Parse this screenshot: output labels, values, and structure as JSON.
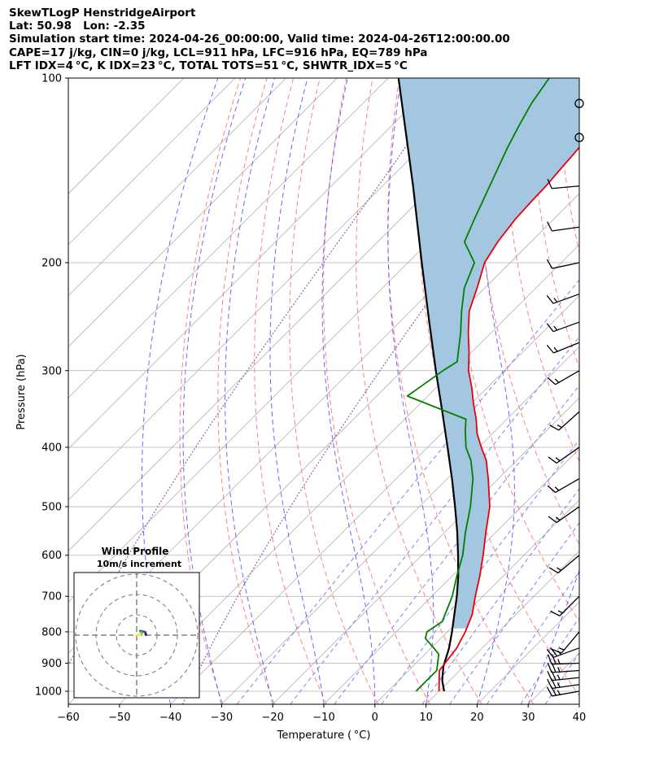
{
  "header": {
    "lines": [
      "SkewTLogP HenstridgeAirport",
      "Lat: 50.98   Lon: -2.35",
      "Simulation start time: 2024-04-26_00:00:00, Valid time: 2024-04-26T12:00:00.00",
      "CAPE=17 j/kg, CIN=0 j/kg, LCL=911 hPa, LFC=916 hPa, EQ=789 hPa",
      "LFT IDX=4 °C, K IDX=23 °C, TOTAL TOTS=51 °C, SHWTR_IDX=5 °C"
    ]
  },
  "chart_data": {
    "type": "line",
    "subtype": "skew-t log-p",
    "xlabel": "Temperature ( °C)",
    "ylabel": "Pressure (hPa)",
    "xlim": [
      -60,
      40
    ],
    "ylim": [
      1050,
      100
    ],
    "y_scale": "log",
    "x_ticks": [
      -60,
      -50,
      -40,
      -30,
      -20,
      -10,
      0,
      10,
      20,
      30,
      40
    ],
    "y_ticks": [
      1000,
      900,
      800,
      700,
      600,
      500,
      400,
      300,
      200,
      100
    ],
    "grid": true,
    "colors": {
      "temperature": "#e8000b",
      "dewpoint": "#008000",
      "parcel": "#000000",
      "cape_fill": "#a3c7e0",
      "isotherms": "#b0b0b0",
      "dry_adiabats": "#ff6b6b",
      "moist_adiabats": "#4d4dff",
      "mixing_ratio": "#6a6aee",
      "ice_line": "#9b59b6"
    },
    "series": [
      {
        "role": "temperature",
        "pressure": [
          1000,
          925,
          850,
          800,
          750,
          700,
          650,
          600,
          550,
          500,
          450,
          420,
          400,
          380,
          360,
          340,
          320,
          300,
          280,
          260,
          240,
          220,
          200,
          185,
          170,
          160,
          150,
          140,
          130,
          120,
          110,
          100
        ],
        "values": [
          10,
          6,
          5,
          3.5,
          1.5,
          -1.5,
          -4.5,
          -8,
          -12,
          -16.2,
          -22,
          -26,
          -29.5,
          -33,
          -36,
          -39.5,
          -43,
          -47,
          -50.5,
          -54.5,
          -58.5,
          -61.5,
          -65,
          -66.5,
          -67.5,
          -67.8,
          -68,
          -68.5,
          -69,
          -69.8,
          -70.5,
          -71
        ]
      },
      {
        "role": "dewpoint",
        "pressure": [
          1000,
          925,
          870,
          850,
          820,
          800,
          770,
          700,
          650,
          600,
          550,
          500,
          450,
          420,
          400,
          375,
          360,
          330,
          300,
          290,
          260,
          240,
          220,
          200,
          185,
          170,
          150,
          130,
          120,
          110,
          100
        ],
        "values": [
          5.5,
          5.5,
          2.7,
          0.5,
          -3,
          -4,
          -3,
          -6,
          -9,
          -12,
          -16,
          -20,
          -25,
          -29,
          -32.5,
          -36,
          -38,
          -54,
          -52,
          -51,
          -56,
          -60,
          -64,
          -67,
          -73,
          -75.5,
          -79,
          -83,
          -85,
          -87,
          -88.5
        ]
      },
      {
        "role": "parcel",
        "pressure": [
          1000,
          960,
          911,
          850,
          800,
          750,
          700,
          650,
          600,
          550,
          500,
          450,
          400,
          350,
          300,
          250,
          200,
          150,
          100
        ],
        "values": [
          11,
          8.5,
          6,
          3.5,
          0.9,
          -2,
          -5.1,
          -8.7,
          -12.9,
          -17.6,
          -23,
          -29.1,
          -36.1,
          -44.1,
          -53.4,
          -64.2,
          -77.3,
          -94,
          -118
        ]
      }
    ],
    "wind_barbs": {
      "pressure": [
        1000,
        975,
        950,
        925,
        900,
        850,
        800,
        700,
        600,
        500,
        450,
        400,
        350,
        300,
        270,
        250,
        225,
        200,
        175,
        150,
        125,
        110
      ],
      "speed_kt": [
        25,
        25,
        25,
        25,
        25,
        25,
        15,
        15,
        15,
        15,
        15,
        15,
        15,
        15,
        15,
        15,
        15,
        10,
        10,
        10,
        0,
        0
      ],
      "direction_deg": [
        260,
        262,
        264,
        266,
        268,
        250,
        220,
        225,
        230,
        235,
        240,
        235,
        228,
        240,
        248,
        250,
        250,
        258,
        262,
        265,
        0,
        0
      ]
    },
    "inset": {
      "title": "Wind Profile",
      "subtitle": "10m/s increment"
    }
  }
}
